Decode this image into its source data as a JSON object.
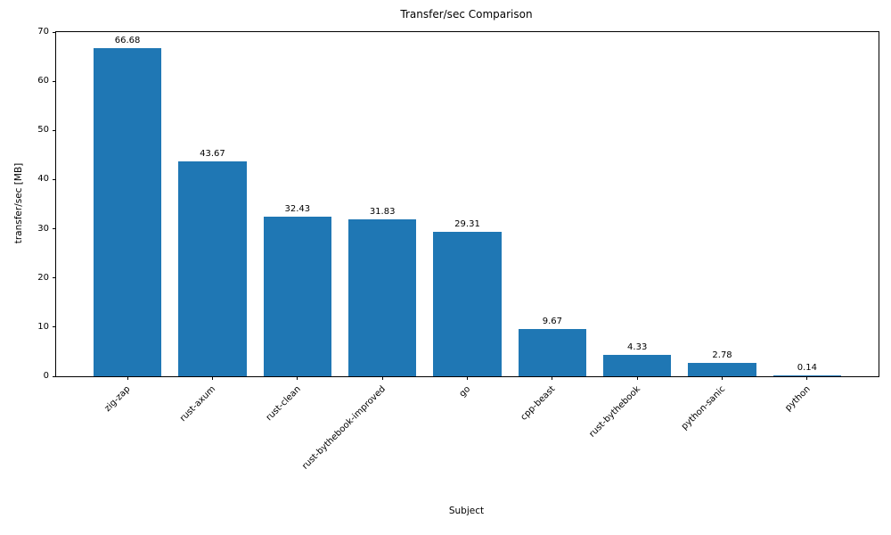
{
  "chart_data": {
    "type": "bar",
    "title": "Transfer/sec Comparison",
    "xlabel": "Subject",
    "ylabel": "transfer/sec [MB]",
    "categories": [
      "zig-zap",
      "rust-axum",
      "rust-clean",
      "rust-bythebook-improved",
      "go",
      "cpp-beast",
      "rust-bythebook",
      "python-sanic",
      "python"
    ],
    "values": [
      66.68,
      43.67,
      32.43,
      31.83,
      29.31,
      9.67,
      4.33,
      2.78,
      0.14
    ],
    "value_labels": [
      "66.68",
      "43.67",
      "32.43",
      "31.83",
      "29.31",
      "9.67",
      "4.33",
      "2.78",
      "0.14"
    ],
    "ylim": [
      0,
      70
    ],
    "yticks": [
      0,
      10,
      20,
      30,
      40,
      50,
      60,
      70
    ],
    "bar_color": "#1f77b4",
    "grid": false,
    "legend": null,
    "x_tick_rotation_deg": 45
  },
  "colors": {
    "bar": "#1f77b4",
    "text": "#000000",
    "spine": "#000000",
    "background": "#ffffff"
  }
}
